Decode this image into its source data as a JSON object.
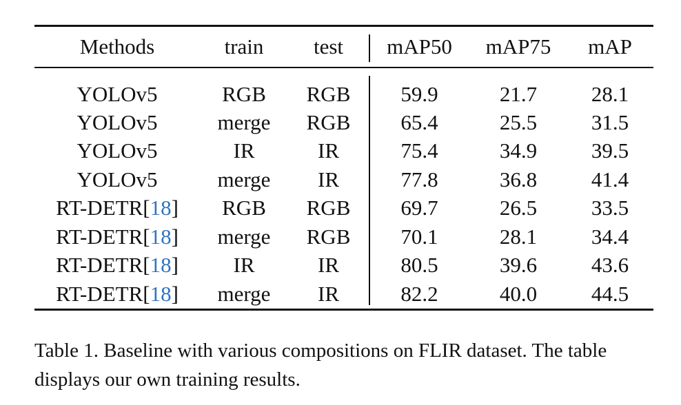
{
  "table": {
    "headers": [
      "Methods",
      "train",
      "test",
      "mAP50",
      "mAP75",
      "mAP"
    ],
    "rows": [
      {
        "method": "YOLOv5",
        "cite": "",
        "train": "RGB",
        "test": "RGB",
        "mAP50": "59.9",
        "mAP75": "21.7",
        "mAP": "28.1"
      },
      {
        "method": "YOLOv5",
        "cite": "",
        "train": "merge",
        "test": "RGB",
        "mAP50": "65.4",
        "mAP75": "25.5",
        "mAP": "31.5"
      },
      {
        "method": "YOLOv5",
        "cite": "",
        "train": "IR",
        "test": "IR",
        "mAP50": "75.4",
        "mAP75": "34.9",
        "mAP": "39.5"
      },
      {
        "method": "YOLOv5",
        "cite": "",
        "train": "merge",
        "test": "IR",
        "mAP50": "77.8",
        "mAP75": "36.8",
        "mAP": "41.4"
      },
      {
        "method": "RT-DETR",
        "cite": "18",
        "train": "RGB",
        "test": "RGB",
        "mAP50": "69.7",
        "mAP75": "26.5",
        "mAP": "33.5"
      },
      {
        "method": "RT-DETR",
        "cite": "18",
        "train": "merge",
        "test": "RGB",
        "mAP50": "70.1",
        "mAP75": "28.1",
        "mAP": "34.4"
      },
      {
        "method": "RT-DETR",
        "cite": "18",
        "train": "IR",
        "test": "IR",
        "mAP50": "80.5",
        "mAP75": "39.6",
        "mAP": "43.6"
      },
      {
        "method": "RT-DETR",
        "cite": "18",
        "train": "merge",
        "test": "IR",
        "mAP50": "82.2",
        "mAP75": "40.0",
        "mAP": "44.5"
      }
    ]
  },
  "caption": "Table 1. Baseline with various compositions on FLIR dataset. The table displays our own training results.",
  "colors": {
    "text": "#111111",
    "citation_link": "#2f74c0",
    "background": "#ffffff"
  }
}
